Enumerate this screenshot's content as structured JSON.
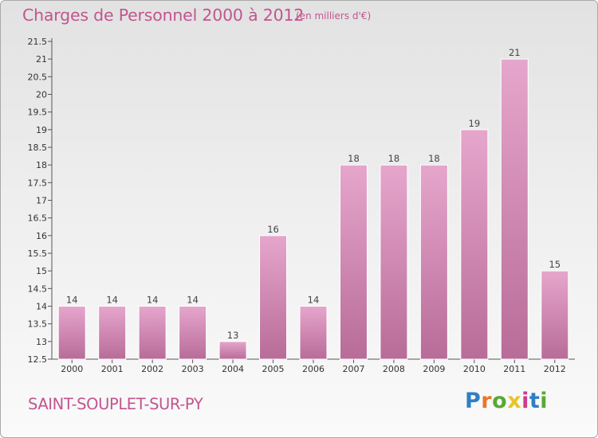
{
  "header": {
    "title": "Charges de Personnel 2000 à 2012",
    "subtitle": "(en milliers d'€)"
  },
  "footer": {
    "commune": "SAINT-SOUPLET-SUR-PY",
    "logo_text": "Proxiti",
    "logo_letters": [
      {
        "char": "P",
        "color": "#2f7fc3"
      },
      {
        "char": "r",
        "color": "#e8772a"
      },
      {
        "char": "o",
        "color": "#5aa832"
      },
      {
        "char": "x",
        "color": "#e8c32a"
      },
      {
        "char": "i",
        "color": "#d23a8a"
      },
      {
        "char": "t",
        "color": "#2f7fc3"
      },
      {
        "char": "i",
        "color": "#5aa832"
      }
    ]
  },
  "colors": {
    "accent": "#c2558e",
    "bar_top": "#e6a6cc",
    "bar_bottom": "#b86c98",
    "bar_edge": "#ffffff"
  },
  "chart_data": {
    "type": "bar",
    "title": "Charges de Personnel 2000 à 2012",
    "subtitle": "(en milliers d'€)",
    "categories": [
      "2000",
      "2001",
      "2002",
      "2003",
      "2004",
      "2005",
      "2006",
      "2007",
      "2008",
      "2009",
      "2010",
      "2011",
      "2012"
    ],
    "values": [
      14,
      14,
      14,
      14,
      13,
      16,
      14,
      18,
      18,
      18,
      19,
      21,
      15
    ],
    "data_labels": [
      "14",
      "14",
      "14",
      "14",
      "13",
      "16",
      "14",
      "18",
      "18",
      "18",
      "19",
      "21",
      "15"
    ],
    "ylim": [
      12.5,
      21.5
    ],
    "yticks": [
      "12.5",
      "13",
      "13.5",
      "14",
      "14.5",
      "15",
      "15.5",
      "16",
      "16.5",
      "17",
      "17.5",
      "18",
      "18.5",
      "19",
      "19.5",
      "20",
      "20.5",
      "21",
      "21.5"
    ],
    "xlabel": "",
    "ylabel": "",
    "grid": false,
    "legend": "none"
  }
}
